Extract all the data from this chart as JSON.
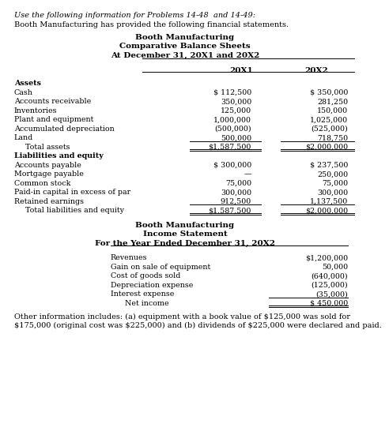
{
  "bg_color": "#ffffff",
  "text_color": "#000000",
  "intro_line1": "Use the following information for Problems 14-48  and 14-49:",
  "intro_line2": "Booth Manufacturing has provided the following financial statements.",
  "bs_title1": "Booth Manufacturing",
  "bs_title2": "Comparative Balance Sheets",
  "bs_title3": "At December 31, 20X1 and 20X2",
  "col_headers": [
    "20X1",
    "20X2"
  ],
  "assets_header": "Assets",
  "assets_rows": [
    [
      "Cash",
      "$ 112,500",
      "$ 350,000"
    ],
    [
      "Accounts receivable",
      "350,000",
      "281,250"
    ],
    [
      "Inventories",
      "125,000",
      "150,000"
    ],
    [
      "Plant and equipment",
      "1,000,000",
      "1,025,000"
    ],
    [
      "Accumulated depreciation",
      "(500,000)",
      "(525,000)"
    ],
    [
      "Land",
      "500,000",
      "718,750"
    ]
  ],
  "assets_total_row": [
    "Total assets",
    "$1,587,500",
    "$2,000,000"
  ],
  "liabilities_header": "Liabilities and equity",
  "liabilities_rows": [
    [
      "Accounts payable",
      "$ 300,000",
      "$ 237,500"
    ],
    [
      "Mortgage payable",
      "—",
      "250,000"
    ],
    [
      "Common stock",
      "75,000",
      "75,000"
    ],
    [
      "Paid-in capital in excess of par",
      "300,000",
      "300,000"
    ],
    [
      "Retained earnings",
      "912,500",
      "1,137,500"
    ]
  ],
  "liabilities_total_row": [
    "Total liabilities and equity",
    "$1,587,500",
    "$2,000,000"
  ],
  "is_title1": "Booth Manufacturing",
  "is_title2": "Income Statement",
  "is_title3": "For the Year Ended December 31, 20X2",
  "is_rows": [
    [
      "Revenues",
      "$1,200,000"
    ],
    [
      "Gain on sale of equipment",
      "50,000"
    ],
    [
      "Cost of goods sold",
      "(640,000)"
    ],
    [
      "Depreciation expense",
      "(125,000)"
    ],
    [
      "Interest expense",
      "(35,000)"
    ]
  ],
  "is_total_row": [
    "Net income",
    "$ 450,000"
  ],
  "footer": "Other information includes: (a) equipment with a book value of $125,000 was sold for $175,000 (original cost was $225,000) and (b) dividends of $225,000 were declared and paid."
}
